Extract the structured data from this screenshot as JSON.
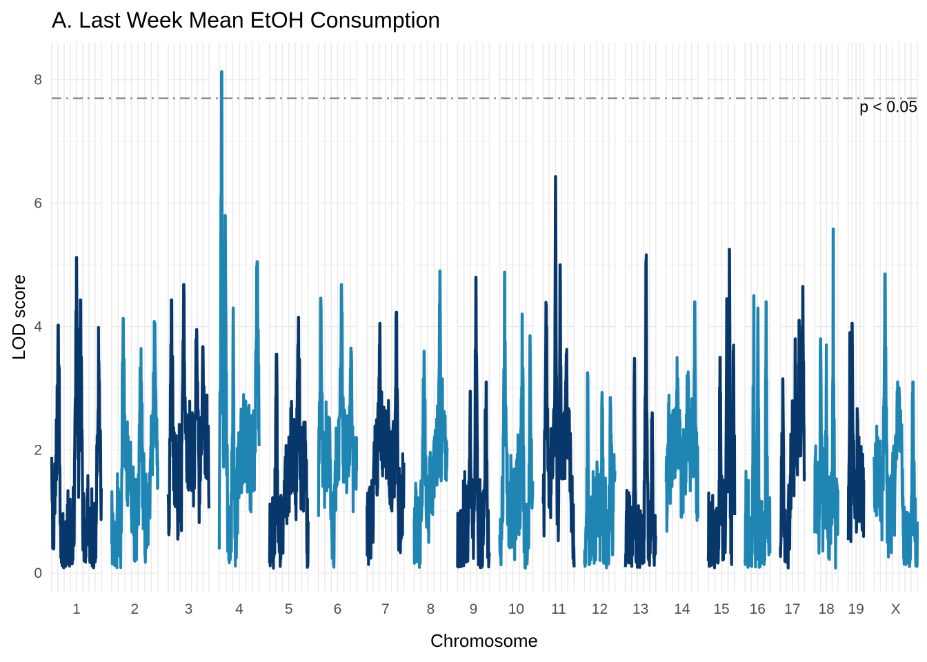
{
  "chart_data": {
    "type": "line",
    "title": "A. Last Week Mean EtOH Consumption",
    "xlabel": "Chromosome",
    "ylabel": "LOD score",
    "ylim": [
      -0.3,
      8.6
    ],
    "yticks": [
      0,
      2,
      4,
      6,
      8
    ],
    "grid": true,
    "legend": "none",
    "colors": {
      "dark": "#08386b",
      "light": "#1f86b4",
      "threshold": "#808080",
      "grid": "#ebebeb"
    },
    "threshold": {
      "value": 7.7,
      "label": "p < 0.05",
      "style": "dash-dot"
    },
    "chromosomes": [
      {
        "name": "1",
        "length": 195,
        "peaks": [
          [
            0.13,
            4.02
          ],
          [
            0.5,
            5.12
          ],
          [
            0.58,
            4.43
          ],
          [
            0.95,
            3.43
          ]
        ]
      },
      {
        "name": "2",
        "length": 182,
        "peaks": [
          [
            0.25,
            4.13
          ],
          [
            0.62,
            3.33
          ],
          [
            0.93,
            4.05
          ]
        ]
      },
      {
        "name": "3",
        "length": 160,
        "peaks": [
          [
            0.08,
            4.43
          ],
          [
            0.38,
            4.68
          ],
          [
            0.7,
            3.95
          ],
          [
            0.85,
            3.67
          ]
        ]
      },
      {
        "name": "4",
        "length": 157,
        "peaks": [
          [
            0.06,
            8.13
          ],
          [
            0.15,
            5.8
          ],
          [
            0.35,
            4.3
          ],
          [
            0.95,
            5.05
          ]
        ]
      },
      {
        "name": "5",
        "length": 152,
        "peaks": [
          [
            0.18,
            3.55
          ],
          [
            0.75,
            4.15
          ],
          [
            0.92,
            2.45
          ]
        ]
      },
      {
        "name": "6",
        "length": 150,
        "peaks": [
          [
            0.06,
            4.46
          ],
          [
            0.6,
            4.68
          ],
          [
            0.85,
            3.65
          ]
        ]
      },
      {
        "name": "7",
        "length": 145,
        "peaks": [
          [
            0.35,
            4.05
          ],
          [
            0.8,
            4.23
          ]
        ]
      },
      {
        "name": "8",
        "length": 130,
        "peaks": [
          [
            0.3,
            3.6
          ],
          [
            0.78,
            4.9
          ],
          [
            0.85,
            3.15
          ]
        ]
      },
      {
        "name": "9",
        "length": 125,
        "peaks": [
          [
            0.4,
            2.95
          ],
          [
            0.58,
            4.8
          ],
          [
            0.9,
            3.1
          ]
        ]
      },
      {
        "name": "10",
        "length": 130,
        "peaks": [
          [
            0.15,
            4.88
          ],
          [
            0.68,
            4.2
          ],
          [
            0.92,
            3.85
          ]
        ]
      },
      {
        "name": "11",
        "length": 122,
        "peaks": [
          [
            0.1,
            4.35
          ],
          [
            0.4,
            6.43
          ],
          [
            0.55,
            5.0
          ],
          [
            0.75,
            3.55
          ]
        ]
      },
      {
        "name": "12",
        "length": 120,
        "peaks": [
          [
            0.1,
            3.25
          ],
          [
            0.58,
            2.93
          ],
          [
            0.85,
            2.85
          ]
        ]
      },
      {
        "name": "13",
        "length": 120,
        "peaks": [
          [
            0.3,
            3.48
          ],
          [
            0.68,
            5.05
          ],
          [
            0.88,
            2.6
          ]
        ]
      },
      {
        "name": "14",
        "length": 125,
        "peaks": [
          [
            0.35,
            2.9
          ],
          [
            0.68,
            3.15
          ],
          [
            0.9,
            4.4
          ]
        ]
      },
      {
        "name": "15",
        "length": 104,
        "peaks": [
          [
            0.45,
            3.5
          ],
          [
            0.7,
            4.45
          ],
          [
            0.8,
            5.25
          ],
          [
            0.95,
            3.6
          ]
        ]
      },
      {
        "name": "16",
        "length": 98,
        "peaks": [
          [
            0.35,
            4.5
          ],
          [
            0.52,
            4.3
          ],
          [
            0.85,
            4.4
          ]
        ]
      },
      {
        "name": "17",
        "length": 95,
        "peaks": [
          [
            0.1,
            3.15
          ],
          [
            0.62,
            3.8
          ],
          [
            0.78,
            4.1
          ],
          [
            0.93,
            4.65
          ]
        ]
      },
      {
        "name": "18",
        "length": 91,
        "peaks": [
          [
            0.25,
            3.8
          ],
          [
            0.5,
            3.7
          ],
          [
            0.8,
            5.58
          ],
          [
            0.95,
            1.4
          ]
        ]
      },
      {
        "name": "19",
        "length": 61,
        "peaks": [
          [
            0.1,
            3.9
          ],
          [
            0.25,
            4.05
          ],
          [
            0.6,
            2.5
          ]
        ]
      },
      {
        "name": "X",
        "length": 170,
        "peaks": [
          [
            0.25,
            4.85
          ],
          [
            0.55,
            2.9
          ],
          [
            0.9,
            3.1
          ]
        ]
      }
    ]
  }
}
